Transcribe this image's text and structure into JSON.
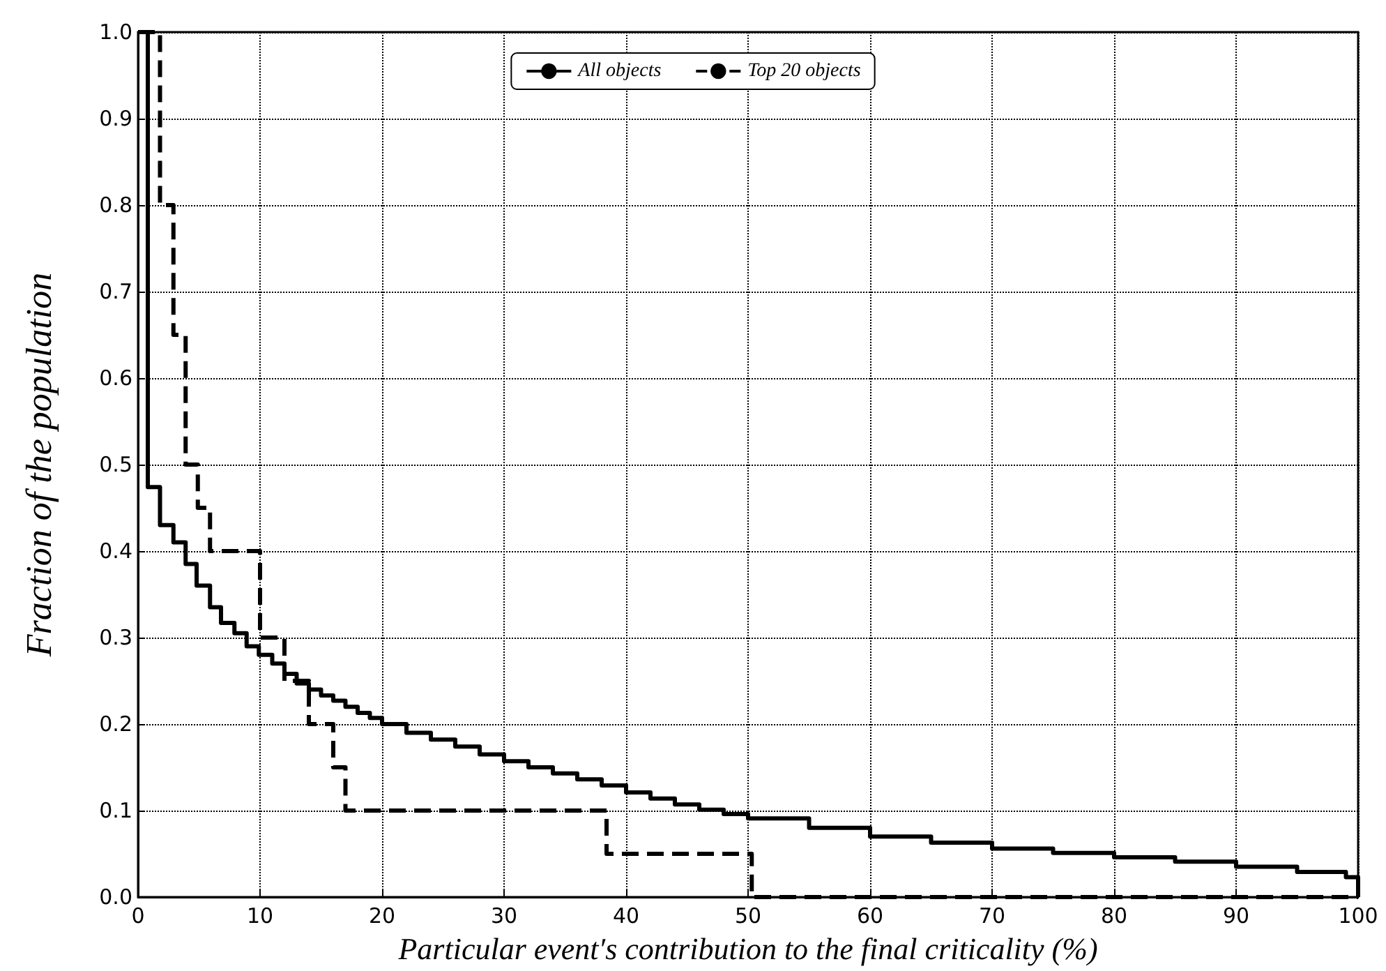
{
  "chart_data": {
    "type": "step",
    "xlabel": "Particular event′s contribution to the final criticality (%)",
    "ylabel": "Fraction of the population",
    "series": [
      {
        "name": "All objects",
        "color": "#000000",
        "line_style": "solid",
        "x": [
          0,
          0.8,
          1.8,
          2.9,
          3.9,
          4.8,
          5.9,
          6.8,
          7.9,
          8.9,
          9.9,
          11,
          12,
          13,
          14,
          15,
          16,
          17,
          18,
          19,
          20,
          22,
          24,
          26,
          28,
          30,
          32,
          34,
          36,
          38,
          40,
          42,
          44,
          46,
          48,
          50,
          55,
          60,
          65,
          70,
          75,
          80,
          85,
          90,
          95,
          99,
          100
        ],
        "values": [
          1.0,
          0.474,
          0.43,
          0.41,
          0.385,
          0.36,
          0.335,
          0.317,
          0.305,
          0.29,
          0.28,
          0.27,
          0.258,
          0.247,
          0.24,
          0.233,
          0.227,
          0.22,
          0.213,
          0.207,
          0.2,
          0.19,
          0.182,
          0.174,
          0.165,
          0.157,
          0.15,
          0.143,
          0.136,
          0.129,
          0.121,
          0.114,
          0.107,
          0.101,
          0.096,
          0.091,
          0.08,
          0.07,
          0.063,
          0.056,
          0.051,
          0.046,
          0.041,
          0.035,
          0.029,
          0.023,
          0
        ]
      },
      {
        "name": "Top 20 objects",
        "color": "#000000",
        "line_style": "dashed",
        "x": [
          0,
          1.8,
          2.9,
          3.9,
          4.9,
          5.9,
          10,
          12,
          14,
          16,
          17,
          38.4,
          50.3,
          100
        ],
        "values": [
          1.0,
          0.8,
          0.65,
          0.5,
          0.45,
          0.4,
          0.3,
          0.25,
          0.2,
          0.15,
          0.1,
          0.05,
          0,
          0
        ]
      }
    ],
    "xlim": [
      0,
      100
    ],
    "xticks": [
      0,
      10,
      20,
      30,
      40,
      50,
      60,
      70,
      80,
      90,
      100
    ],
    "ylim": [
      0,
      1
    ],
    "yticks": [
      {
        "value": 0,
        "label": "0.0"
      },
      0.1,
      0.2,
      0.3,
      0.4,
      0.5,
      0.6,
      0.7,
      0.8,
      0.9,
      {
        "value": 1,
        "label": "1.0"
      }
    ],
    "grid": true,
    "legend": "top",
    "marker": "none"
  }
}
